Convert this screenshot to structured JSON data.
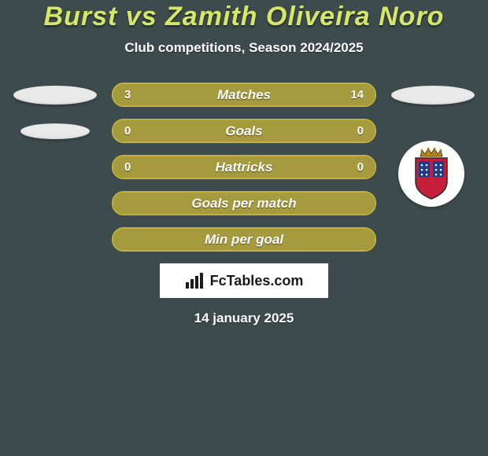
{
  "background_color": "#3d4b4c",
  "title": {
    "text": "Burst vs Zamith Oliveira Noro",
    "color": "#d6e767",
    "fontsize": 34
  },
  "subtitle": {
    "text": "Club competitions, Season 2024/2025",
    "color": "#ffffff",
    "fontsize": 17
  },
  "bar_style": {
    "border_color": "#c3b33a",
    "border_width": 2,
    "height": 31,
    "radius": 15,
    "label_color": "#ffffff",
    "label_fontsize": 17,
    "value_color": "#ffffff",
    "value_fontsize": 15,
    "fill_color": "#a59b3e"
  },
  "rows": [
    {
      "label": "Matches",
      "left_value": "3",
      "right_value": "14",
      "left_fill_pct": 0,
      "right_fill_pct": 100,
      "show_left_badge": true,
      "show_right_badge": true
    },
    {
      "label": "Goals",
      "left_value": "0",
      "right_value": "0",
      "left_fill_pct": 0,
      "right_fill_pct": 100,
      "show_left_badge": true,
      "show_right_badge": false
    },
    {
      "label": "Hattricks",
      "left_value": "0",
      "right_value": "0",
      "left_fill_pct": 0,
      "right_fill_pct": 100,
      "show_left_badge": false,
      "show_right_badge": false
    },
    {
      "label": "Goals per match",
      "left_value": "",
      "right_value": "",
      "left_fill_pct": 0,
      "right_fill_pct": 100
    },
    {
      "label": "Min per goal",
      "left_value": "",
      "right_value": "",
      "left_fill_pct": 0,
      "right_fill_pct": 100
    }
  ],
  "watermark": {
    "background": "#ffffff",
    "text": "FcTables.com",
    "text_color": "#1a1a1a",
    "fontsize": 18
  },
  "date": {
    "text": "14 january 2025",
    "color": "#ffffff",
    "fontsize": 17
  },
  "crest": {
    "bg": "#ffffff",
    "shield_red": "#c41e3a",
    "shield_blue": "#1e3a8a",
    "shield_border": "#2a2a2a",
    "crown": "#b8860b"
  }
}
